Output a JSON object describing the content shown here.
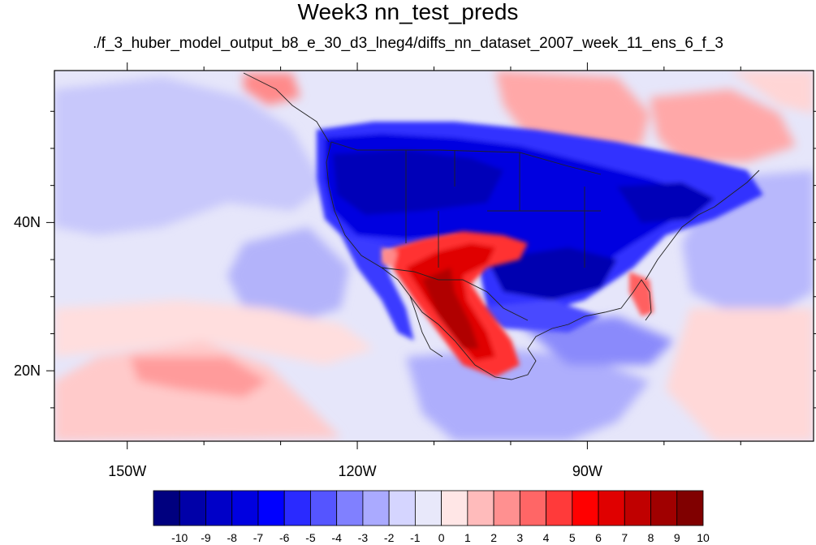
{
  "title": "Week3 nn_test_preds",
  "subtitle": "./f_3_huber_model_output_b8_e_30_d3_lneg4/diffs_nn_dataset_2007_week_11_ens_6_f_3",
  "map": {
    "lon_ticks": [
      {
        "value": -150,
        "label": "150W"
      },
      {
        "value": -120,
        "label": "120W"
      },
      {
        "value": -90,
        "label": "90W"
      }
    ],
    "lat_ticks": [
      {
        "value": 40,
        "label": "40N"
      },
      {
        "value": 20,
        "label": "20N"
      }
    ],
    "lon_range": [
      -159.5,
      -60.5
    ],
    "lat_range": [
      10.5,
      60.5
    ]
  },
  "colorbar": {
    "labels": [
      "-10",
      "-9",
      "-8",
      "-7",
      "-6",
      "-5",
      "-4",
      "-3",
      "-2",
      "-1",
      "0",
      "1",
      "2",
      "3",
      "4",
      "5",
      "6",
      "7",
      "8",
      "9",
      "10"
    ],
    "colors": [
      "#00007f",
      "#0000a8",
      "#0000c8",
      "#0000e0",
      "#0000ff",
      "#2a2aff",
      "#5555ff",
      "#8080ff",
      "#aaaaff",
      "#d5d5ff",
      "#e8e8fa",
      "#ffe6e6",
      "#ffbbbb",
      "#ff9090",
      "#ff6666",
      "#ff3a3a",
      "#ff0000",
      "#e00000",
      "#c00000",
      "#a00000",
      "#800000"
    ]
  }
}
